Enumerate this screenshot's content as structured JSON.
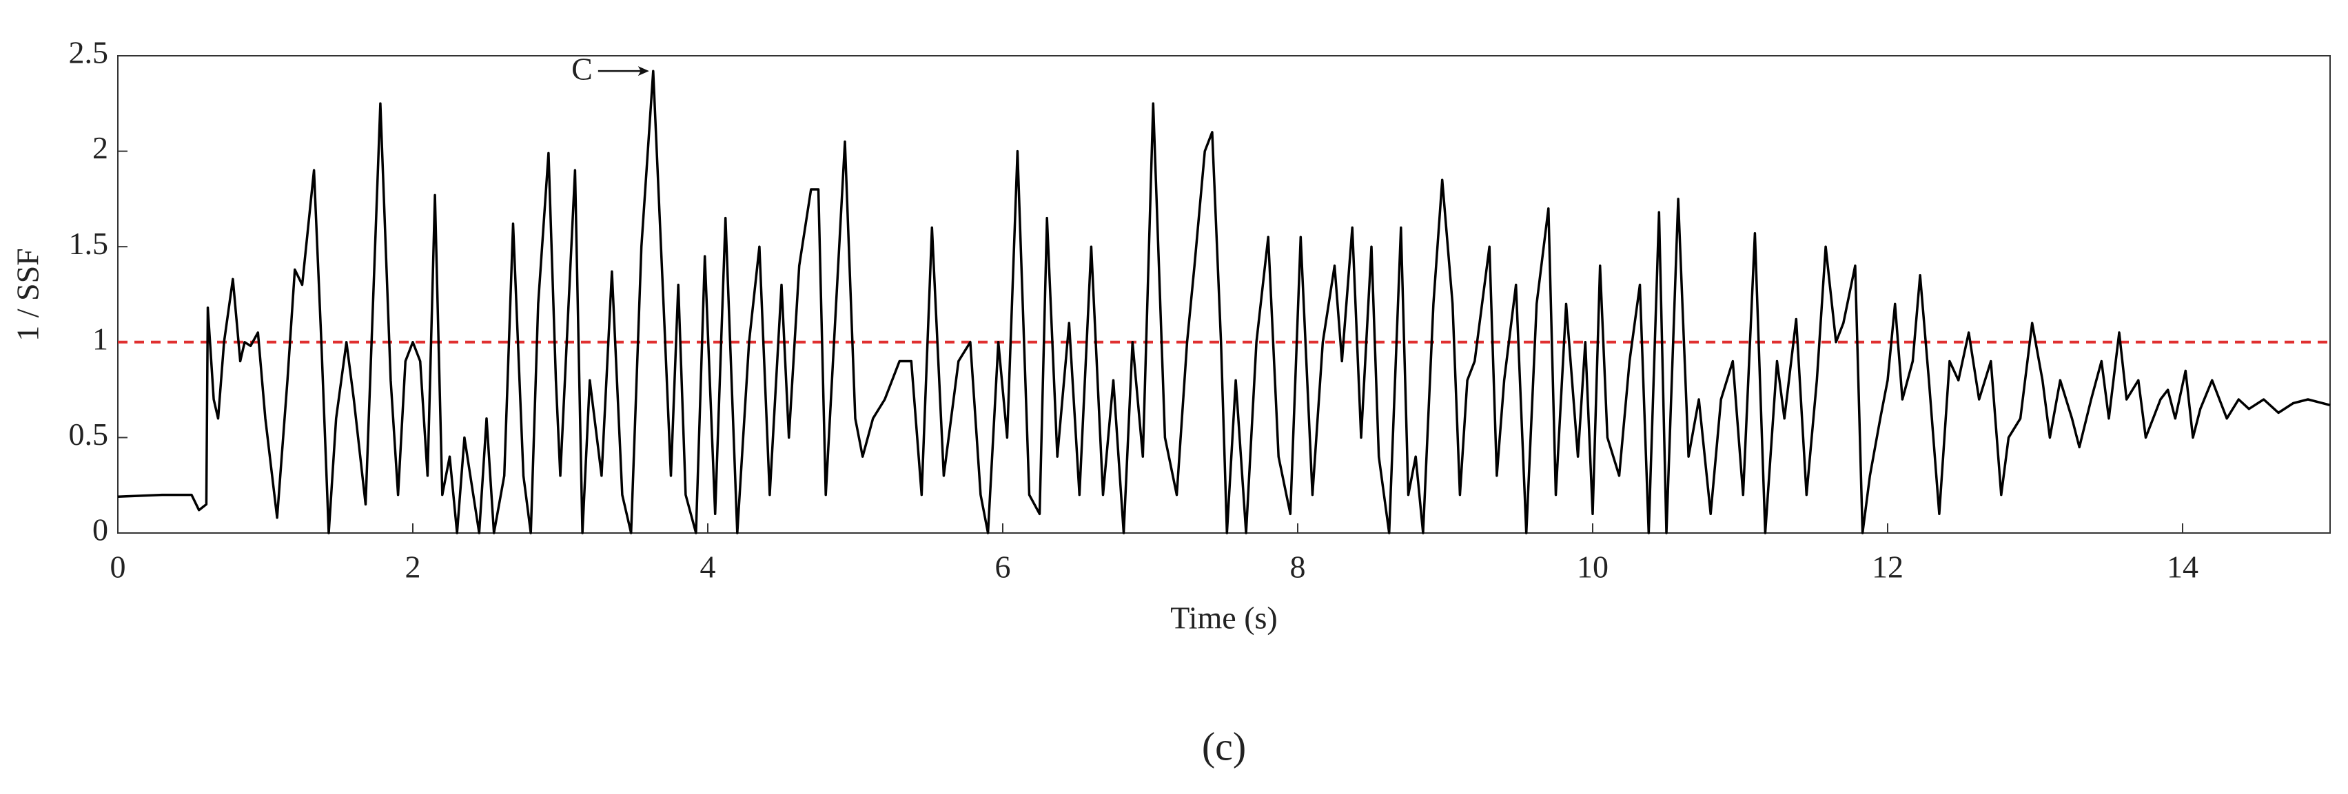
{
  "chart_data": {
    "type": "line",
    "ylabel": "1 / SSF",
    "xlabel": "Time (s)",
    "caption": "(c)",
    "xlim": [
      0,
      15
    ],
    "xticks": [
      0,
      2,
      4,
      6,
      8,
      10,
      12,
      14
    ],
    "ylim": [
      0,
      2.5
    ],
    "yticks": [
      0,
      0.5,
      1,
      1.5,
      2,
      2.5
    ],
    "threshold": 1,
    "threshold_color": "#e03030",
    "annotation": {
      "text": "C",
      "x": 3.63,
      "y": 2.42
    },
    "series": [
      {
        "color": "#000000",
        "x": [
          0,
          0.3,
          0.5,
          0.55,
          0.6,
          0.61,
          0.65,
          0.68,
          0.72,
          0.78,
          0.83,
          0.86,
          0.9,
          0.95,
          1.0,
          1.08,
          1.15,
          1.2,
          1.25,
          1.33,
          1.38,
          1.43,
          1.48,
          1.55,
          1.6,
          1.68,
          1.73,
          1.78,
          1.85,
          1.9,
          1.95,
          2.0,
          2.05,
          2.1,
          2.15,
          2.2,
          2.25,
          2.3,
          2.35,
          2.45,
          2.5,
          2.55,
          2.62,
          2.68,
          2.75,
          2.8,
          2.85,
          2.92,
          2.97,
          3.0,
          3.1,
          3.15,
          3.2,
          3.28,
          3.35,
          3.42,
          3.48,
          3.55,
          3.63,
          3.7,
          3.75,
          3.8,
          3.85,
          3.92,
          3.98,
          4.05,
          4.12,
          4.2,
          4.28,
          4.35,
          4.42,
          4.5,
          4.55,
          4.62,
          4.7,
          4.75,
          4.8,
          4.87,
          4.93,
          5.0,
          5.05,
          5.12,
          5.2,
          5.3,
          5.38,
          5.45,
          5.52,
          5.6,
          5.7,
          5.78,
          5.85,
          5.9,
          5.97,
          6.03,
          6.1,
          6.18,
          6.25,
          6.3,
          6.37,
          6.45,
          6.52,
          6.6,
          6.68,
          6.75,
          6.82,
          6.88,
          6.95,
          7.02,
          7.1,
          7.18,
          7.25,
          7.3,
          7.37,
          7.42,
          7.48,
          7.52,
          7.58,
          7.65,
          7.72,
          7.8,
          7.87,
          7.95,
          8.02,
          8.1,
          8.17,
          8.25,
          8.3,
          8.37,
          8.43,
          8.5,
          8.55,
          8.62,
          8.7,
          8.75,
          8.8,
          8.85,
          8.92,
          8.98,
          9.05,
          9.1,
          9.15,
          9.2,
          9.3,
          9.35,
          9.4,
          9.48,
          9.55,
          9.62,
          9.7,
          9.75,
          9.82,
          9.9,
          9.95,
          10.0,
          10.05,
          10.1,
          10.18,
          10.25,
          10.32,
          10.38,
          10.45,
          10.5,
          10.58,
          10.65,
          10.72,
          10.8,
          10.87,
          10.95,
          11.02,
          11.1,
          11.17,
          11.25,
          11.3,
          11.38,
          11.45,
          11.52,
          11.58,
          11.65,
          11.7,
          11.78,
          11.83,
          11.88,
          11.95,
          12.0,
          12.05,
          12.1,
          12.17,
          12.22,
          12.28,
          12.35,
          12.42,
          12.48,
          12.55,
          12.62,
          12.7,
          12.77,
          12.82,
          12.9,
          12.98,
          13.05,
          13.1,
          13.17,
          13.25,
          13.3,
          13.38,
          13.45,
          13.5,
          13.57,
          13.62,
          13.7,
          13.75,
          13.8,
          13.85,
          13.9,
          13.95,
          14.02,
          14.07,
          14.12,
          14.2,
          14.3,
          14.38,
          14.45,
          14.55,
          14.65,
          14.75,
          14.85,
          15.0
        ],
        "values": [
          0.19,
          0.2,
          0.2,
          0.12,
          0.15,
          1.18,
          0.7,
          0.6,
          1.0,
          1.33,
          0.9,
          1.0,
          0.98,
          1.05,
          0.6,
          0.08,
          0.8,
          1.38,
          1.3,
          1.9,
          1.0,
          0.0,
          0.6,
          1.0,
          0.7,
          0.15,
          1.2,
          2.25,
          0.8,
          0.2,
          0.9,
          1.0,
          0.9,
          0.3,
          1.77,
          0.2,
          0.4,
          0.0,
          0.5,
          0.0,
          0.6,
          0.0,
          0.3,
          1.62,
          0.3,
          0.0,
          1.2,
          1.99,
          0.8,
          0.3,
          1.9,
          0.0,
          0.8,
          0.3,
          1.37,
          0.2,
          0.0,
          1.5,
          2.42,
          1.2,
          0.3,
          1.3,
          0.2,
          0.0,
          1.45,
          0.1,
          1.65,
          0.0,
          1.0,
          1.5,
          0.2,
          1.3,
          0.5,
          1.4,
          1.8,
          1.8,
          0.2,
          1.2,
          2.05,
          0.6,
          0.4,
          0.6,
          0.7,
          0.9,
          0.9,
          0.2,
          1.6,
          0.3,
          0.9,
          1.0,
          0.2,
          0.0,
          1.0,
          0.5,
          2.0,
          0.2,
          0.1,
          1.65,
          0.4,
          1.1,
          0.2,
          1.5,
          0.2,
          0.8,
          0.0,
          1.0,
          0.4,
          2.25,
          0.5,
          0.2,
          1.0,
          1.4,
          2.0,
          2.1,
          1.0,
          0.0,
          0.8,
          0.0,
          1.0,
          1.55,
          0.4,
          0.1,
          1.55,
          0.2,
          1.0,
          1.4,
          0.9,
          1.6,
          0.5,
          1.5,
          0.4,
          0.0,
          1.6,
          0.2,
          0.4,
          0.0,
          1.2,
          1.85,
          1.2,
          0.2,
          0.8,
          0.9,
          1.5,
          0.3,
          0.8,
          1.3,
          0.0,
          1.2,
          1.7,
          0.2,
          1.2,
          0.4,
          1.0,
          0.1,
          1.4,
          0.5,
          0.3,
          0.9,
          1.3,
          0.0,
          1.68,
          0.0,
          1.75,
          0.4,
          0.7,
          0.1,
          0.7,
          0.9,
          0.2,
          1.57,
          0.0,
          0.9,
          0.6,
          1.12,
          0.2,
          0.8,
          1.5,
          1.0,
          1.1,
          1.4,
          0.0,
          0.3,
          0.6,
          0.8,
          1.2,
          0.7,
          0.9,
          1.35,
          0.8,
          0.1,
          0.9,
          0.8,
          1.05,
          0.7,
          0.9,
          0.2,
          0.5,
          0.6,
          1.1,
          0.8,
          0.5,
          0.8,
          0.6,
          0.45,
          0.7,
          0.9,
          0.6,
          1.05,
          0.7,
          0.8,
          0.5,
          0.6,
          0.7,
          0.75,
          0.6,
          0.85,
          0.5,
          0.65,
          0.8,
          0.6,
          0.7,
          0.65,
          0.7,
          0.63,
          0.68,
          0.7,
          0.67
        ]
      }
    ]
  }
}
